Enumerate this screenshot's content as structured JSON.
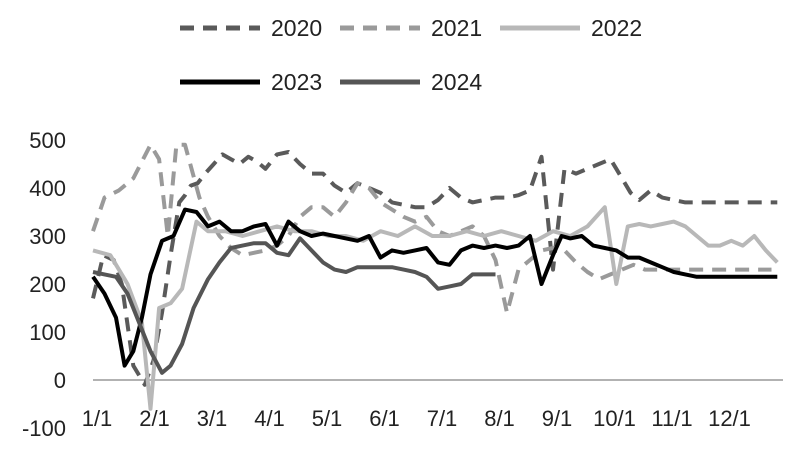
{
  "chart_data": {
    "type": "line",
    "title": "",
    "xlabel": "",
    "ylabel": "",
    "x_ticks": [
      "1/1",
      "2/1",
      "3/1",
      "4/1",
      "5/1",
      "6/1",
      "7/1",
      "8/1",
      "9/1",
      "10/1",
      "11/1",
      "12/1"
    ],
    "x_range": [
      0,
      12
    ],
    "ylim": [
      -100,
      500
    ],
    "y_ticks": [
      -100,
      0,
      100,
      200,
      300,
      400,
      500
    ],
    "grid": false,
    "legend_position": "top",
    "series": [
      {
        "name": "2020",
        "color": "#5a5a5a",
        "style": "dashed",
        "x": [
          0.0,
          0.18,
          0.36,
          0.5,
          0.7,
          0.9,
          1.05,
          1.2,
          1.35,
          1.5,
          1.6,
          1.7,
          1.82,
          1.95,
          2.1,
          2.25,
          2.4,
          2.55,
          2.7,
          2.85,
          3.0,
          3.2,
          3.4,
          3.6,
          3.8,
          4.0,
          4.2,
          4.4,
          4.6,
          4.8,
          5.0,
          5.2,
          5.4,
          5.6,
          5.8,
          6.0,
          6.2,
          6.4,
          6.6,
          6.8,
          7.0,
          7.2,
          7.4,
          7.6,
          7.8,
          8.0,
          8.2,
          8.4,
          8.6,
          8.8,
          9.0,
          9.1,
          9.2,
          9.35,
          9.5,
          9.7,
          9.9,
          10.1,
          10.3,
          10.5,
          10.7,
          10.9,
          11.1,
          11.3,
          11.5,
          11.7,
          11.9
        ],
        "values": [
          170,
          260,
          250,
          200,
          30,
          -10,
          40,
          140,
          260,
          370,
          385,
          405,
          410,
          430,
          450,
          470,
          460,
          450,
          465,
          455,
          440,
          470,
          475,
          450,
          430,
          430,
          405,
          390,
          410,
          400,
          390,
          370,
          365,
          360,
          360,
          375,
          400,
          380,
          370,
          375,
          380,
          380,
          385,
          395,
          465,
          230,
          440,
          430,
          440,
          450,
          460,
          440,
          420,
          390,
          375,
          395,
          380,
          375,
          370,
          370,
          370,
          370,
          370,
          370,
          370,
          370,
          370
        ]
      },
      {
        "name": "2021",
        "color": "#9a9a9a",
        "style": "dashed",
        "x": [
          0.0,
          0.2,
          0.45,
          0.7,
          1.0,
          1.15,
          1.3,
          1.45,
          1.6,
          1.85,
          2.0,
          2.2,
          2.4,
          2.6,
          2.8,
          3.0,
          3.2,
          3.4,
          3.6,
          3.8,
          4.0,
          4.2,
          4.4,
          4.6,
          4.8,
          5.0,
          5.2,
          5.4,
          5.6,
          5.8,
          6.0,
          6.2,
          6.4,
          6.6,
          6.8,
          7.0,
          7.2,
          7.4,
          7.6,
          7.8,
          8.0,
          8.2,
          8.4,
          8.6,
          8.8,
          9.0,
          9.2,
          9.4,
          9.6,
          9.8,
          10.0,
          10.2,
          10.4,
          10.6,
          10.8,
          11.0,
          11.2,
          11.4,
          11.6,
          11.8
        ],
        "values": [
          310,
          380,
          395,
          420,
          490,
          460,
          300,
          490,
          490,
          380,
          340,
          300,
          275,
          260,
          265,
          270,
          280,
          300,
          340,
          360,
          360,
          340,
          370,
          410,
          400,
          370,
          355,
          340,
          330,
          340,
          310,
          300,
          310,
          320,
          300,
          250,
          140,
          230,
          250,
          270,
          275,
          270,
          245,
          225,
          210,
          220,
          230,
          240,
          230,
          230,
          230,
          230,
          230,
          230,
          230,
          230,
          230,
          230,
          230,
          230
        ]
      },
      {
        "name": "2022",
        "color": "#b8b8b8",
        "style": "solid",
        "x": [
          0.0,
          0.3,
          0.6,
          0.85,
          1.0,
          1.15,
          1.35,
          1.55,
          1.8,
          2.0,
          2.3,
          2.6,
          2.9,
          3.2,
          3.5,
          3.8,
          4.1,
          4.4,
          4.7,
          5.0,
          5.3,
          5.6,
          5.9,
          6.2,
          6.5,
          6.8,
          7.1,
          7.4,
          7.7,
          8.0,
          8.3,
          8.6,
          8.9,
          9.1,
          9.3,
          9.5,
          9.7,
          9.9,
          10.1,
          10.3,
          10.5,
          10.7,
          10.9,
          11.1,
          11.3,
          11.5,
          11.7,
          11.9
        ],
        "values": [
          270,
          260,
          200,
          120,
          -60,
          150,
          160,
          190,
          330,
          310,
          310,
          300,
          310,
          320,
          310,
          310,
          300,
          300,
          290,
          310,
          300,
          320,
          300,
          300,
          310,
          300,
          310,
          300,
          290,
          310,
          300,
          320,
          360,
          200,
          320,
          325,
          320,
          325,
          330,
          320,
          300,
          280,
          280,
          290,
          280,
          300,
          270,
          245
        ]
      },
      {
        "name": "2023",
        "color": "#000000",
        "style": "solid",
        "x": [
          0.0,
          0.2,
          0.4,
          0.55,
          0.7,
          0.85,
          1.0,
          1.2,
          1.4,
          1.6,
          1.8,
          2.0,
          2.2,
          2.4,
          2.6,
          2.8,
          3.0,
          3.2,
          3.4,
          3.6,
          3.8,
          4.0,
          4.2,
          4.4,
          4.6,
          4.8,
          5.0,
          5.2,
          5.4,
          5.6,
          5.8,
          6.0,
          6.2,
          6.4,
          6.6,
          6.8,
          7.0,
          7.2,
          7.4,
          7.6,
          7.8,
          8.0,
          8.15,
          8.3,
          8.5,
          8.7,
          8.9,
          9.1,
          9.3,
          9.5,
          9.7,
          9.9,
          10.1,
          10.3,
          10.5,
          10.7,
          10.9,
          11.1,
          11.3,
          11.5,
          11.7,
          11.9
        ],
        "values": [
          215,
          180,
          130,
          30,
          60,
          130,
          220,
          290,
          300,
          355,
          350,
          320,
          330,
          310,
          310,
          320,
          325,
          280,
          330,
          310,
          300,
          305,
          300,
          295,
          290,
          300,
          255,
          270,
          265,
          270,
          275,
          245,
          240,
          270,
          280,
          275,
          280,
          275,
          280,
          300,
          200,
          260,
          300,
          295,
          300,
          280,
          275,
          270,
          255,
          255,
          245,
          235,
          225,
          220,
          215,
          215,
          215,
          215,
          215,
          215,
          215,
          215
        ]
      },
      {
        "name": "2024",
        "color": "#555555",
        "style": "solid",
        "x": [
          0.0,
          0.2,
          0.4,
          0.6,
          0.8,
          1.0,
          1.2,
          1.35,
          1.55,
          1.75,
          2.0,
          2.2,
          2.4,
          2.6,
          2.8,
          3.0,
          3.2,
          3.4,
          3.6,
          3.8,
          4.0,
          4.2,
          4.4,
          4.6,
          4.8,
          5.0,
          5.2,
          5.4,
          5.6,
          5.8,
          6.0,
          6.2,
          6.4,
          6.6,
          6.8,
          7.0
        ],
        "values": [
          225,
          220,
          215,
          180,
          120,
          60,
          15,
          30,
          75,
          150,
          210,
          245,
          275,
          280,
          285,
          285,
          265,
          260,
          295,
          270,
          245,
          230,
          225,
          235,
          235,
          235,
          235,
          230,
          225,
          215,
          190,
          195,
          200,
          220,
          220,
          220
        ]
      }
    ]
  }
}
